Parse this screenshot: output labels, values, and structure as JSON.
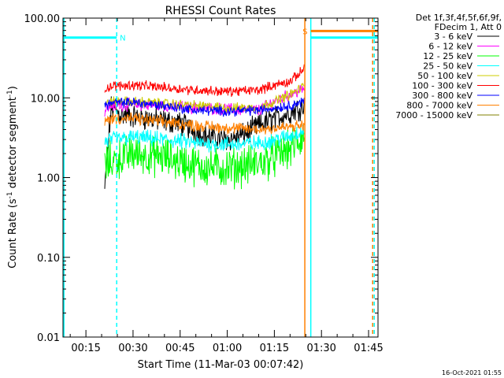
{
  "chart_data": {
    "type": "line",
    "title": "RHESSI Count Rates",
    "xlabel": "Start Time (11-Mar-03 00:07:42)",
    "ylabel_parts": [
      "Count Rate (s",
      "-1",
      " detector segment",
      "-1",
      ")"
    ],
    "y_scale": "log",
    "ylim": [
      0.01,
      100
    ],
    "xlim_minutes": [
      7.7,
      108
    ],
    "y_ticks": [
      {
        "value": 100,
        "label": "100.00"
      },
      {
        "value": 10,
        "label": "10.00"
      },
      {
        "value": 1,
        "label": "1.00"
      },
      {
        "value": 0.1,
        "label": "0.10"
      },
      {
        "value": 0.01,
        "label": "0.01"
      }
    ],
    "x_ticks": [
      {
        "minutes": 15,
        "label": "00:15"
      },
      {
        "minutes": 30,
        "label": "00:30"
      },
      {
        "minutes": 45,
        "label": "00:45"
      },
      {
        "minutes": 60,
        "label": "01:00"
      },
      {
        "minutes": 75,
        "label": "01:15"
      },
      {
        "minutes": 90,
        "label": "01:30"
      },
      {
        "minutes": 105,
        "label": "01:45"
      }
    ],
    "legend_header": [
      "Det 1f,3f,4f,5f,6f,9f,",
      "FDecim 1, Att 0"
    ],
    "legend_placement": "right",
    "series": [
      {
        "name": "3 - 6 keV",
        "color": "#000000",
        "x": [
          21,
          23,
          26,
          35,
          45,
          50,
          55,
          60,
          65,
          70,
          75,
          80,
          84.5
        ],
        "y": [
          0.7,
          7.5,
          6.2,
          5.5,
          4.8,
          3.8,
          3.2,
          3.0,
          3.4,
          4.5,
          5.5,
          6.5,
          8.0
        ],
        "noise": 0.12
      },
      {
        "name": "6 - 12 keV",
        "color": "#ff00ff",
        "x": [
          21,
          23,
          30,
          40,
          50,
          60,
          70,
          75,
          80,
          84.5
        ],
        "y": [
          7.0,
          8.0,
          8.2,
          8.0,
          7.5,
          7.2,
          7.0,
          9.0,
          11.0,
          13.0
        ],
        "noise": 0.06
      },
      {
        "name": "12 - 25 keV",
        "color": "#00ff00",
        "x": [
          21,
          23,
          30,
          40,
          50,
          60,
          70,
          75,
          80,
          84.5
        ],
        "y": [
          1.4,
          1.6,
          2.0,
          1.8,
          1.4,
          1.3,
          1.5,
          1.8,
          2.3,
          3.2
        ],
        "noise": 0.2
      },
      {
        "name": "25 - 50 keV",
        "color": "#00ffff",
        "x": [
          21,
          23,
          30,
          40,
          50,
          60,
          70,
          75,
          80,
          84.5
        ],
        "y": [
          2.8,
          3.0,
          3.2,
          3.0,
          2.7,
          2.6,
          2.7,
          3.0,
          3.3,
          4.0
        ],
        "noise": 0.08
      },
      {
        "name": "50 - 100 keV",
        "color": "#cccc00",
        "x": [
          21,
          23,
          30,
          40,
          50,
          60,
          70,
          75,
          80,
          84.5
        ],
        "y": [
          8.0,
          9.0,
          9.0,
          8.5,
          8.0,
          7.5,
          7.5,
          9.0,
          11.0,
          14.0
        ],
        "noise": 0.05
      },
      {
        "name": "100 - 300 keV",
        "color": "#ff0000",
        "x": [
          21,
          23,
          30,
          40,
          50,
          60,
          70,
          75,
          80,
          84,
          84.5
        ],
        "y": [
          13.0,
          14.0,
          14.5,
          13.5,
          12.5,
          12.0,
          12.5,
          14.5,
          16.0,
          22.0,
          28.0
        ],
        "noise": 0.05
      },
      {
        "name": "300 - 800 keV",
        "color": "#0000ff",
        "x": [
          21,
          23,
          30,
          40,
          50,
          60,
          70,
          75,
          80,
          84.5
        ],
        "y": [
          8.0,
          8.6,
          8.8,
          8.0,
          7.0,
          6.8,
          7.0,
          7.5,
          8.0,
          9.0
        ],
        "noise": 0.05
      },
      {
        "name": "800 - 7000 keV",
        "color": "#ff8000",
        "x": [
          21,
          23,
          30,
          40,
          50,
          60,
          70,
          75,
          80,
          84.5
        ],
        "y": [
          5.0,
          5.5,
          5.5,
          5.0,
          4.5,
          4.2,
          4.0,
          4.2,
          4.3,
          4.5
        ],
        "noise": 0.06
      },
      {
        "name": "7000 - 15000 keV",
        "color": "#808000",
        "x": [],
        "y": [],
        "noise": 0
      }
    ],
    "vlines": [
      {
        "minutes": 8.0,
        "color": "#00ffff",
        "style": "solid"
      },
      {
        "minutes": 24.8,
        "color": "#00ffff",
        "style": "dashed"
      },
      {
        "minutes": 84.7,
        "color": "#ff8000",
        "style": "solid"
      },
      {
        "minutes": 86.6,
        "color": "#00ffff",
        "style": "solid"
      },
      {
        "minutes": 106.3,
        "color": "#ff8000",
        "style": "dashed"
      },
      {
        "minutes": 106.8,
        "color": "#00ffff",
        "style": "dashed"
      }
    ],
    "hbars": [
      {
        "x0": 7.7,
        "x1": 24.8,
        "y": 57,
        "color": "#00ffff"
      },
      {
        "x0": 86.6,
        "x1": 108,
        "y": 57,
        "color": "#00ffff"
      },
      {
        "x0": 86.6,
        "x1": 108,
        "y": 69,
        "color": "#ff8000"
      }
    ],
    "annotations": [
      {
        "text": "N",
        "minutes": 25.8,
        "y": 57,
        "color": "#00ffff"
      },
      {
        "text": "S",
        "minutes": 84.0,
        "y": 69,
        "color": "#ff8000"
      }
    ],
    "footer": "16-Oct-2021 01:55"
  }
}
